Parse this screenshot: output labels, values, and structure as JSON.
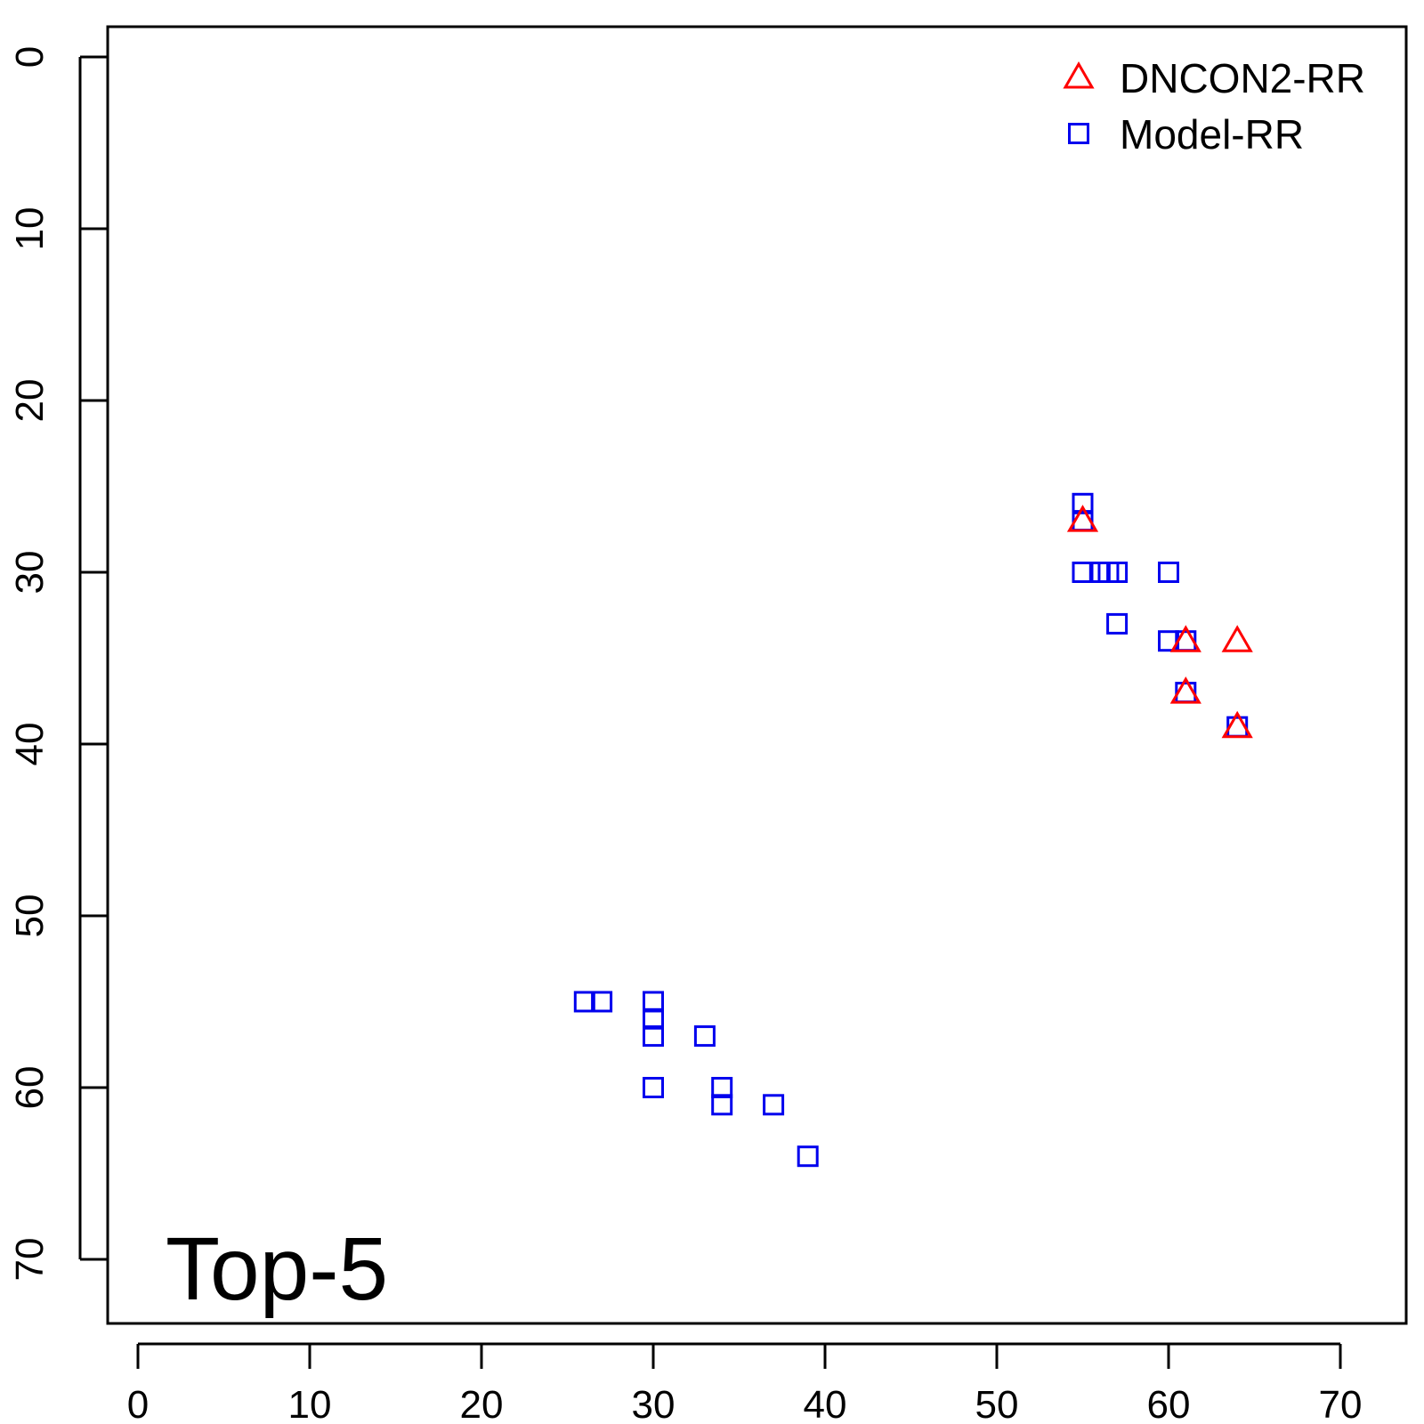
{
  "chart_data": {
    "type": "scatter",
    "title": "",
    "xlabel": "",
    "ylabel": "",
    "xlim": [
      0,
      70
    ],
    "ylim": [
      0,
      70
    ],
    "y_axis_reversed": true,
    "x_ticks": [
      0,
      10,
      20,
      30,
      40,
      50,
      60,
      70
    ],
    "y_ticks": [
      0,
      10,
      20,
      30,
      40,
      50,
      60,
      70
    ],
    "grid": false,
    "legend_position": "top-right",
    "annotation": "Top-5",
    "series": [
      {
        "name": "DNCON2-RR",
        "marker": "triangle",
        "color": "#ff0000",
        "points": [
          [
            55,
            27
          ],
          [
            61,
            34
          ],
          [
            64,
            34
          ],
          [
            61,
            37
          ],
          [
            64,
            39
          ]
        ]
      },
      {
        "name": "Model-RR",
        "marker": "square",
        "color": "#0000ee",
        "points": [
          [
            55,
            26
          ],
          [
            55,
            27
          ],
          [
            55,
            30
          ],
          [
            56,
            30
          ],
          [
            56.5,
            30
          ],
          [
            57,
            30
          ],
          [
            60,
            30
          ],
          [
            57,
            33
          ],
          [
            60,
            34
          ],
          [
            61,
            34
          ],
          [
            61,
            37
          ],
          [
            64,
            39
          ],
          [
            26,
            55
          ],
          [
            27,
            55
          ],
          [
            30,
            55
          ],
          [
            30,
            56
          ],
          [
            30,
            57
          ],
          [
            33,
            57
          ],
          [
            30,
            60
          ],
          [
            34,
            60
          ],
          [
            34,
            61
          ],
          [
            37,
            61
          ],
          [
            39,
            64
          ]
        ]
      }
    ]
  }
}
